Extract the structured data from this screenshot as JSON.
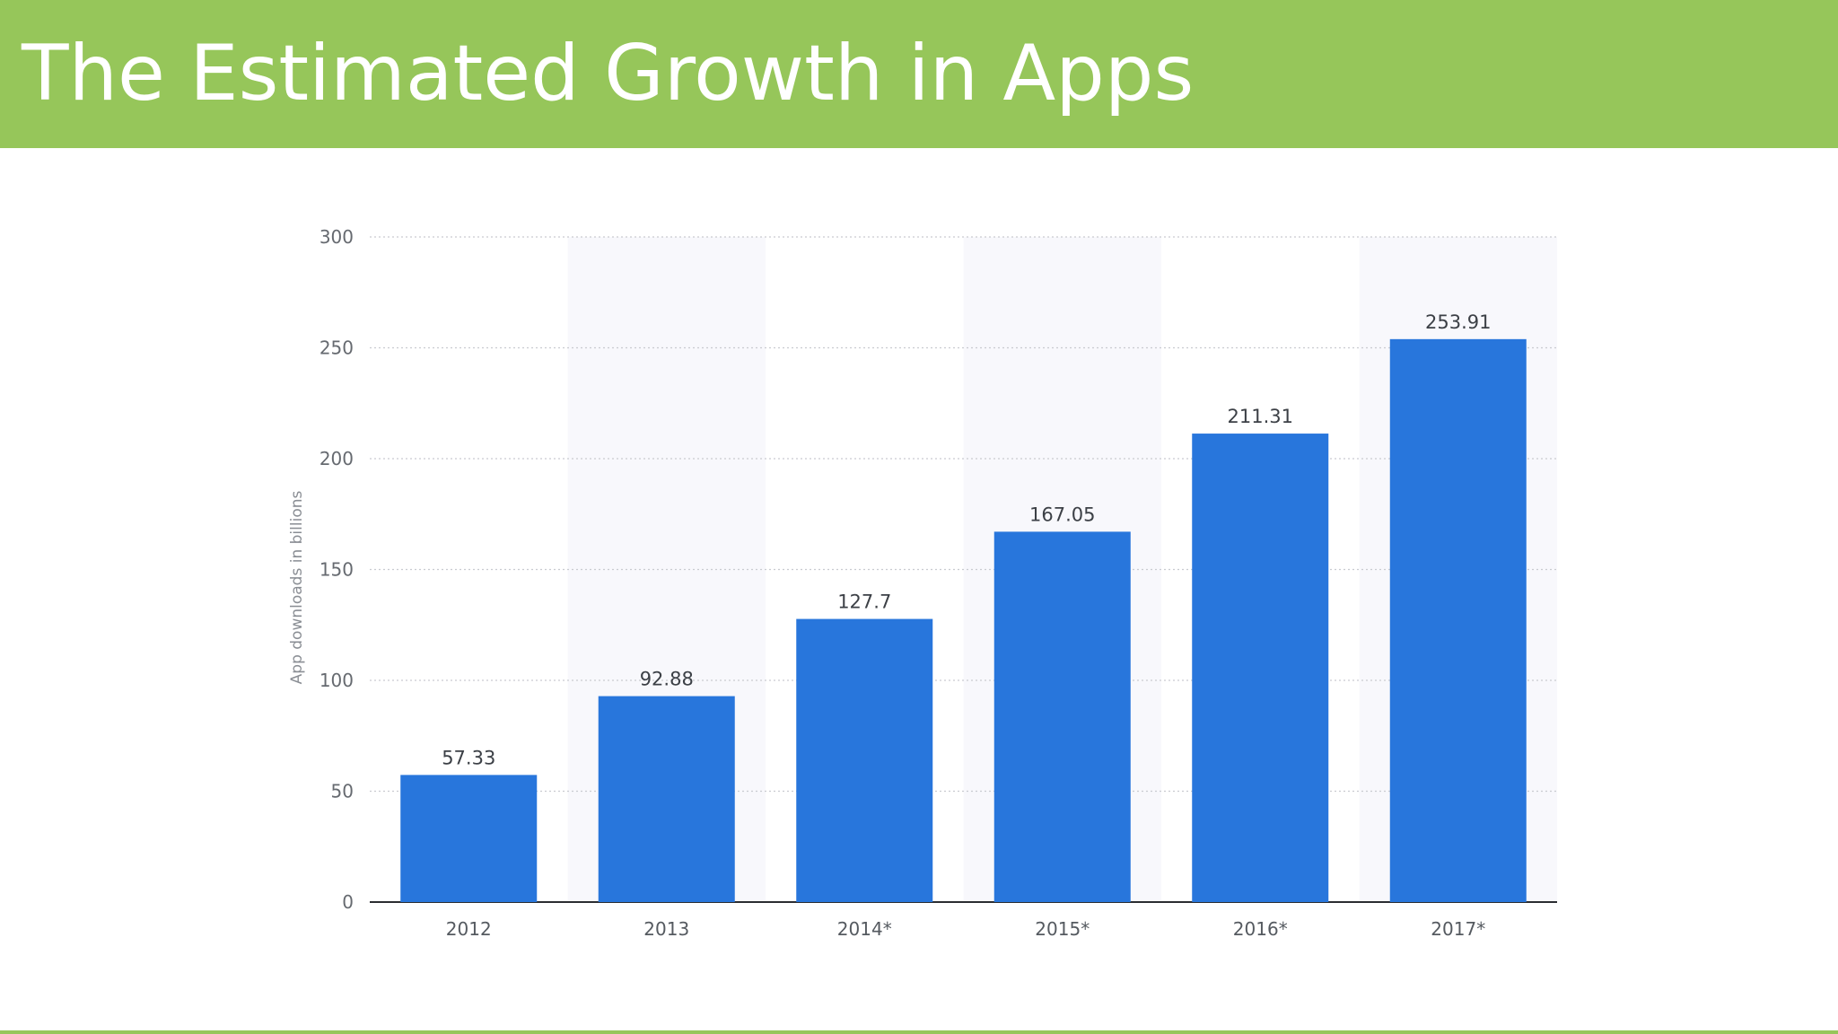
{
  "slide": {
    "title": "The Estimated Growth in Apps"
  },
  "colors": {
    "header": "#96c65a",
    "bar": "#2876dc",
    "band": "#f8f8fc"
  },
  "chart_data": {
    "type": "bar",
    "categories": [
      "2012",
      "2013",
      "2014*",
      "2015*",
      "2016*",
      "2017*"
    ],
    "values": [
      57.33,
      92.88,
      127.7,
      167.05,
      211.31,
      253.91
    ],
    "value_labels": [
      "57.33",
      "92.88",
      "127.7",
      "167.05",
      "211.31",
      "253.91"
    ],
    "ylabel": "App downloads in billions",
    "xlabel": "",
    "ylim": [
      0,
      300
    ],
    "yticks": [
      0,
      50,
      100,
      150,
      200,
      250,
      300
    ],
    "grid": true,
    "legend": "none"
  }
}
